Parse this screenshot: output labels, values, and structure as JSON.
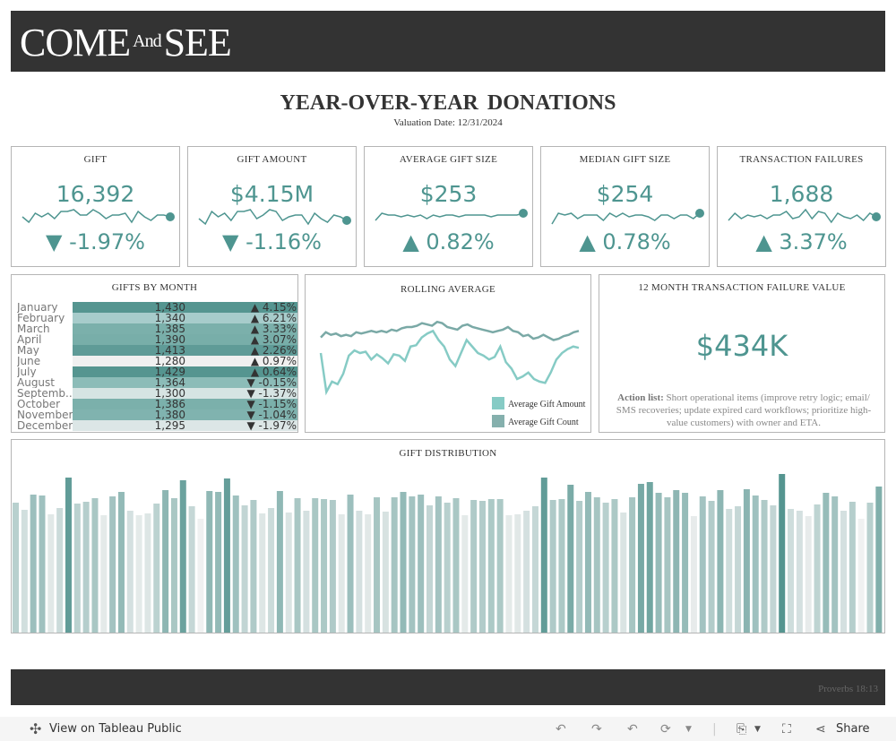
{
  "header": {
    "logo": "COME And SEE",
    "logo_parts": [
      "COME",
      "And",
      "SEE"
    ]
  },
  "title": "YEAR-OVER-YEAR  DONATIONS",
  "subtitle": "Valuation Date: 12/31/2024",
  "colors": {
    "accent": "#4e9590",
    "header_bg": "#333333",
    "count_line": "#7aa9a6",
    "amount_line": "#86cbc5"
  },
  "kpis": [
    {
      "title": "GIFT",
      "value": "16,392",
      "change": "▼ -1.97%",
      "spark": [
        5,
        2,
        7,
        5,
        7,
        4,
        8,
        8,
        9,
        6,
        6,
        9,
        7,
        4,
        6,
        6,
        7,
        2,
        8,
        5,
        3,
        6,
        6,
        5
      ]
    },
    {
      "title": "GIFT AMOUNT",
      "value": "$4.15M",
      "change": "▼ -1.16%",
      "spark": [
        4,
        1,
        8,
        5,
        7,
        3,
        8,
        8,
        9,
        4,
        6,
        9,
        8,
        3,
        5,
        6,
        6,
        1,
        7,
        4,
        2,
        6,
        5,
        3
      ]
    },
    {
      "title": "AVERAGE GIFT SIZE",
      "value": "$253",
      "change": "▲ 0.82%",
      "spark": [
        3,
        7,
        6,
        6,
        5,
        6,
        5,
        6,
        4,
        6,
        5,
        6,
        6,
        5,
        6,
        6,
        6,
        6,
        5,
        6,
        6,
        6,
        6,
        7
      ]
    },
    {
      "title": "MEDIAN GIFT SIZE",
      "value": "$254",
      "change": "▲ 0.78%",
      "spark": [
        1,
        7,
        6,
        7,
        4,
        6,
        6,
        6,
        3,
        7,
        5,
        7,
        5,
        6,
        6,
        5,
        3,
        6,
        6,
        4,
        6,
        6,
        4,
        7
      ]
    },
    {
      "title": "TRANSACTION FAILURES",
      "value": "1,688",
      "change": "▲ 3.37%",
      "spark": [
        3,
        7,
        4,
        6,
        5,
        6,
        4,
        6,
        6,
        8,
        4,
        5,
        9,
        4,
        8,
        7,
        2,
        7,
        5,
        4,
        6,
        3,
        7,
        5
      ]
    }
  ],
  "gifts_by_month": {
    "title": "GIFTS BY MONTH",
    "rows": [
      {
        "month": "January",
        "value": "1,430",
        "change": "▲ 4.15%",
        "color": "#559590"
      },
      {
        "month": "February",
        "value": "1,340",
        "change": "▲ 6.21%",
        "color": "#a7cccb"
      },
      {
        "month": "March",
        "value": "1,385",
        "change": "▲ 3.33%",
        "color": "#7bb0ab"
      },
      {
        "month": "April",
        "value": "1,390",
        "change": "▲ 3.07%",
        "color": "#78aea9"
      },
      {
        "month": "May",
        "value": "1,413",
        "change": "▲ 2.26%",
        "color": "#5f9b97"
      },
      {
        "month": "June",
        "value": "1,280",
        "change": "▲ 0.97%",
        "color": "#f0f0f0"
      },
      {
        "month": "July",
        "value": "1,429",
        "change": "▲ 0.64%",
        "color": "#559590"
      },
      {
        "month": "August",
        "value": "1,364",
        "change": "▼ -0.15%",
        "color": "#8cbcb8"
      },
      {
        "month": "Septemb..",
        "value": "1,300",
        "change": "▼ -1.37%",
        "color": "#d6e4e3"
      },
      {
        "month": "October",
        "value": "1,386",
        "change": "▼ -1.15%",
        "color": "#7bb0ab"
      },
      {
        "month": "November",
        "value": "1,380",
        "change": "▼ -1.04%",
        "color": "#80b3af"
      },
      {
        "month": "December",
        "value": "1,295",
        "change": "▼ -1.97%",
        "color": "#dce6e6"
      }
    ]
  },
  "rolling": {
    "title": "ROLLING AVERAGE",
    "legend": [
      "Average Gift Amount",
      "Average Gift Count"
    ]
  },
  "tfv": {
    "title": "12 MONTH TRANSACTION FAILURE VALUE",
    "value": "$434K",
    "action_label": "Action list:",
    "action_text": " Short operational items (improve retry logic; email/ SMS recoveries; update expired card workflows; prioritize high-value customers) with owner and ETA."
  },
  "distribution": {
    "title": "GIFT DISTRIBUTION"
  },
  "chart_data": [
    {
      "type": "line",
      "title": "ROLLING AVERAGE",
      "series": [
        {
          "name": "Average Gift Count",
          "values": [
            62,
            66,
            64,
            65,
            63,
            64,
            63,
            66,
            65,
            66,
            67,
            66,
            67,
            66,
            68,
            67,
            69,
            70,
            70,
            71,
            73,
            72,
            71,
            74,
            73,
            70,
            69,
            68,
            71,
            72,
            70,
            69,
            68,
            67,
            66,
            67,
            68,
            70,
            67,
            66,
            63,
            64,
            61,
            62,
            64,
            62,
            60,
            61,
            63,
            64,
            66,
            67
          ]
        },
        {
          "name": "Average Gift Amount",
          "values": [
            50,
            20,
            28,
            26,
            34,
            48,
            52,
            50,
            51,
            45,
            49,
            46,
            42,
            49,
            48,
            44,
            55,
            56,
            62,
            65,
            67,
            60,
            55,
            45,
            40,
            50,
            60,
            55,
            50,
            48,
            45,
            47,
            55,
            43,
            38,
            30,
            32,
            35,
            30,
            28,
            27,
            35,
            45,
            50,
            53,
            55,
            54
          ]
        }
      ]
    },
    {
      "type": "bar",
      "title": "GIFT DISTRIBUTION",
      "values": [
        145,
        137,
        154,
        153,
        132,
        139,
        173,
        144,
        146,
        150,
        131,
        152,
        157,
        136,
        131,
        133,
        144,
        159,
        150,
        170,
        141,
        127,
        158,
        157,
        172,
        153,
        142,
        148,
        133,
        139,
        158,
        134,
        150,
        136,
        150,
        149,
        148,
        132,
        154,
        136,
        132,
        151,
        135,
        151,
        157,
        152,
        154,
        142,
        152,
        145,
        150,
        131,
        148,
        147,
        149,
        149,
        131,
        132,
        136,
        141,
        173,
        148,
        149,
        165,
        147,
        157,
        151,
        145,
        149,
        134,
        151,
        166,
        168,
        156,
        151,
        159,
        156,
        130,
        152,
        147,
        159,
        138,
        141,
        160,
        153,
        148,
        142,
        177,
        138,
        136,
        130,
        143,
        156,
        152,
        136,
        146,
        127,
        145,
        163
      ]
    }
  ],
  "footer": {
    "verse": "Proverbs 18:13"
  },
  "toolbar": {
    "view_label": "View on Tableau Public",
    "share_label": "Share"
  }
}
